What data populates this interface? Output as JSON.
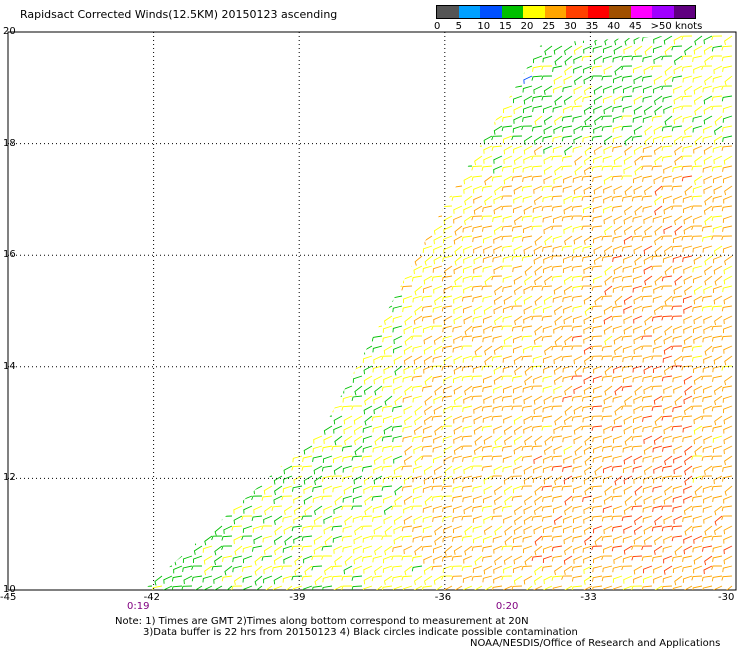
{
  "title": "Rapidsact Corrected Winds(12.5KM) 20150123 ascending",
  "legend": {
    "labels": [
      "0",
      "5",
      "10",
      "15",
      "20",
      "25",
      "30",
      "35",
      "40",
      "45",
      ">50 knots"
    ],
    "colors": [
      "#555555",
      "#00a0ff",
      "#0050ff",
      "#00c000",
      "#ffff00",
      "#ffa500",
      "#ff4000",
      "#ff0000",
      "#a05000",
      "#ff00ff",
      "#a000ff",
      "#600080"
    ]
  },
  "axes": {
    "lat_ticks": [
      "20",
      "18",
      "16",
      "14",
      "12",
      "10"
    ],
    "lon_ticks": [
      "-45",
      "-42",
      "-39",
      "-36",
      "-33",
      "-30"
    ],
    "lat_range": [
      10,
      20
    ],
    "lon_range": [
      -45,
      -30
    ]
  },
  "times": [
    {
      "label": "0:19",
      "lon": -42.3
    },
    {
      "label": "0:20",
      "lon": -34.7
    }
  ],
  "notes": {
    "line1": "Note: 1) Times are GMT 2)Times along bottom correspond to measurement at 20N",
    "line2": "3)Data buffer is 22 hrs from 20150123 4) Black circles indicate possible contamination",
    "credit": "NOAA/NESDIS/Office of Research and Applications"
  }
}
